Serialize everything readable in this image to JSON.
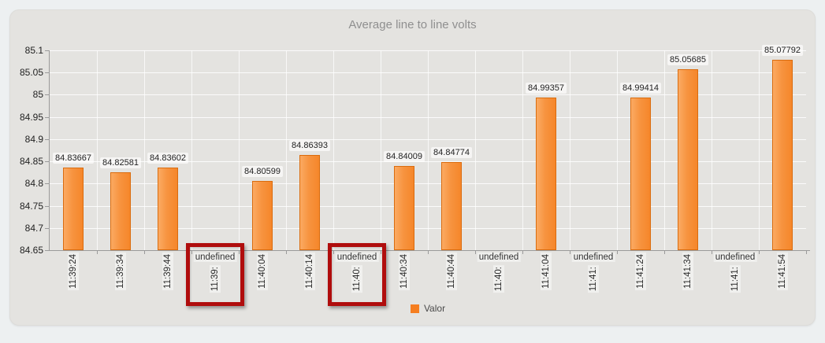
{
  "window": {
    "background": "#edf0f1",
    "panel_background": "#e4e3e0"
  },
  "chart_data": {
    "type": "bar",
    "title": "Average line to line volts",
    "xlabel": "",
    "ylabel": "",
    "ylim": [
      84.65,
      85.1
    ],
    "ytick_step": 0.05,
    "ytick_labels": [
      "85.1",
      "85.05",
      "85",
      "84.95",
      "84.9",
      "84.85",
      "84.8",
      "84.75",
      "84.7",
      "84.65"
    ],
    "grid": true,
    "legend": {
      "label": "Valor",
      "position": "bottom-center",
      "swatch_color": "#f57e20"
    },
    "categories": [
      {
        "label": "11:39:24",
        "value": 84.83667,
        "value_label": "84.83667",
        "undefined_label": null,
        "highlighted": false
      },
      {
        "label": "11:39:34",
        "value": 84.82581,
        "value_label": "84.82581",
        "undefined_label": null,
        "highlighted": false
      },
      {
        "label": "11:39:44",
        "value": 84.83602,
        "value_label": "84.83602",
        "undefined_label": null,
        "highlighted": false
      },
      {
        "label": "11:39:",
        "value": null,
        "value_label": null,
        "undefined_label": "undefined",
        "highlighted": true
      },
      {
        "label": "11:40:04",
        "value": 84.80599,
        "value_label": "84.80599",
        "undefined_label": null,
        "highlighted": false
      },
      {
        "label": "11:40:14",
        "value": 84.86393,
        "value_label": "84.86393",
        "undefined_label": null,
        "highlighted": false
      },
      {
        "label": "11:40:",
        "value": null,
        "value_label": null,
        "undefined_label": "undefined",
        "highlighted": true
      },
      {
        "label": "11:40:34",
        "value": 84.84009,
        "value_label": "84.84009",
        "undefined_label": null,
        "highlighted": false
      },
      {
        "label": "11:40:44",
        "value": 84.84774,
        "value_label": "84.84774",
        "undefined_label": null,
        "highlighted": false
      },
      {
        "label": "11:40:",
        "value": null,
        "value_label": null,
        "undefined_label": "undefined",
        "highlighted": false
      },
      {
        "label": "11:41:04",
        "value": 84.99357,
        "value_label": "84.99357",
        "undefined_label": null,
        "highlighted": false
      },
      {
        "label": "11:41:",
        "value": null,
        "value_label": null,
        "undefined_label": "undefined",
        "highlighted": false
      },
      {
        "label": "11:41:24",
        "value": 84.99414,
        "value_label": "84.99414",
        "undefined_label": null,
        "highlighted": false
      },
      {
        "label": "11:41:34",
        "value": 85.05685,
        "value_label": "85.05685",
        "undefined_label": null,
        "highlighted": false
      },
      {
        "label": "11:41:",
        "value": null,
        "value_label": null,
        "undefined_label": "undefined",
        "highlighted": false
      },
      {
        "label": "11:41:54",
        "value": 85.07792,
        "value_label": "85.07792",
        "undefined_label": null,
        "highlighted": false
      }
    ],
    "annotation": {
      "description_color": "#b00d0d"
    },
    "colors": {
      "bar_fill_light": "#fbaa63",
      "bar_fill_dark": "#f5862a",
      "bar_border": "#da6c0e",
      "grid_line": "#ffffff",
      "axis_line": "#9a9a9a",
      "title": "#8f8f8f",
      "highlight_box": "#b00d0d"
    }
  }
}
